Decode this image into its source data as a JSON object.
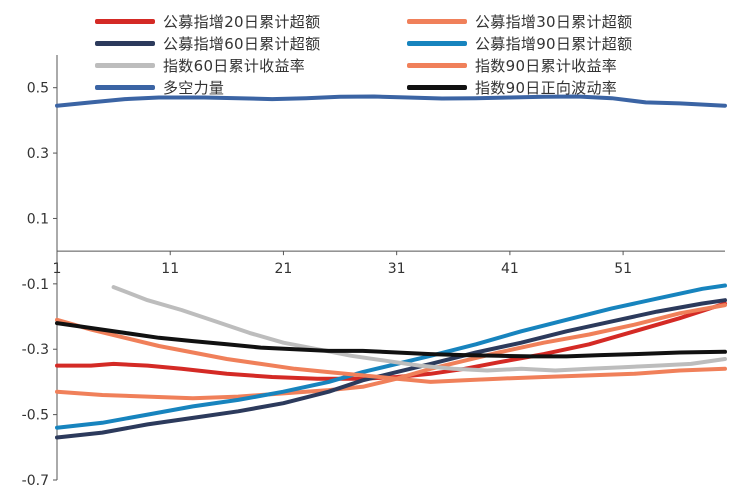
{
  "chart_data": {
    "type": "line",
    "title": "",
    "xlabel": "",
    "ylabel": "",
    "xlim": [
      1,
      60
    ],
    "ylim": [
      -0.7,
      0.6
    ],
    "y_ticks": [
      0.5,
      0.3,
      0.1,
      -0.1,
      -0.3,
      -0.5,
      -0.7
    ],
    "y_tick_labels": [
      "0.5",
      "0.3",
      "0.1",
      "-0.1",
      "-0.3",
      "-0.5",
      "-0.7"
    ],
    "x_ticks": [
      1,
      11,
      21,
      31,
      41,
      51
    ],
    "x_tick_labels": [
      "1",
      "11",
      "21",
      "31",
      "41",
      "51"
    ],
    "grid": false,
    "legend_position": "top",
    "series": [
      {
        "name": "公募指增20日累计超额",
        "color": "#d42a25",
        "points": [
          [
            1,
            -0.35
          ],
          [
            4,
            -0.35
          ],
          [
            6,
            -0.345
          ],
          [
            9,
            -0.35
          ],
          [
            12,
            -0.36
          ],
          [
            16,
            -0.375
          ],
          [
            20,
            -0.385
          ],
          [
            24,
            -0.39
          ],
          [
            28,
            -0.39
          ],
          [
            31,
            -0.385
          ],
          [
            34,
            -0.375
          ],
          [
            37,
            -0.36
          ],
          [
            40,
            -0.34
          ],
          [
            44,
            -0.315
          ],
          [
            48,
            -0.285
          ],
          [
            52,
            -0.245
          ],
          [
            56,
            -0.205
          ],
          [
            60,
            -0.16
          ]
        ]
      },
      {
        "name": "公募指增30日累计超额",
        "color": "#f0805a",
        "points": [
          [
            1,
            -0.43
          ],
          [
            5,
            -0.44
          ],
          [
            9,
            -0.445
          ],
          [
            13,
            -0.45
          ],
          [
            17,
            -0.445
          ],
          [
            21,
            -0.435
          ],
          [
            25,
            -0.425
          ],
          [
            28,
            -0.415
          ],
          [
            31,
            -0.39
          ],
          [
            34,
            -0.36
          ],
          [
            37,
            -0.335
          ],
          [
            40,
            -0.31
          ],
          [
            44,
            -0.28
          ],
          [
            48,
            -0.255
          ],
          [
            52,
            -0.225
          ],
          [
            56,
            -0.19
          ],
          [
            60,
            -0.165
          ]
        ]
      },
      {
        "name": "公募指增60日累计超额",
        "color": "#2c3a5c",
        "points": [
          [
            1,
            -0.57
          ],
          [
            5,
            -0.555
          ],
          [
            9,
            -0.53
          ],
          [
            13,
            -0.51
          ],
          [
            17,
            -0.49
          ],
          [
            21,
            -0.465
          ],
          [
            25,
            -0.43
          ],
          [
            28,
            -0.395
          ],
          [
            31,
            -0.37
          ],
          [
            34,
            -0.345
          ],
          [
            38,
            -0.31
          ],
          [
            42,
            -0.28
          ],
          [
            46,
            -0.245
          ],
          [
            50,
            -0.215
          ],
          [
            54,
            -0.185
          ],
          [
            58,
            -0.16
          ],
          [
            60,
            -0.15
          ]
        ]
      },
      {
        "name": "公募指增90日累计超额",
        "color": "#1784be",
        "points": [
          [
            1,
            -0.54
          ],
          [
            5,
            -0.525
          ],
          [
            9,
            -0.5
          ],
          [
            13,
            -0.475
          ],
          [
            17,
            -0.455
          ],
          [
            21,
            -0.43
          ],
          [
            25,
            -0.4
          ],
          [
            28,
            -0.37
          ],
          [
            31,
            -0.345
          ],
          [
            34,
            -0.32
          ],
          [
            38,
            -0.285
          ],
          [
            42,
            -0.245
          ],
          [
            46,
            -0.21
          ],
          [
            50,
            -0.175
          ],
          [
            54,
            -0.145
          ],
          [
            58,
            -0.115
          ],
          [
            60,
            -0.105
          ]
        ]
      },
      {
        "name": "指数60日累计收益率",
        "color": "#bdbdbd",
        "points": [
          [
            6,
            -0.11
          ],
          [
            9,
            -0.15
          ],
          [
            12,
            -0.18
          ],
          [
            15,
            -0.215
          ],
          [
            18,
            -0.25
          ],
          [
            21,
            -0.28
          ],
          [
            24,
            -0.3
          ],
          [
            27,
            -0.32
          ],
          [
            30,
            -0.335
          ],
          [
            33,
            -0.35
          ],
          [
            36,
            -0.36
          ],
          [
            39,
            -0.365
          ],
          [
            42,
            -0.36
          ],
          [
            45,
            -0.365
          ],
          [
            48,
            -0.36
          ],
          [
            51,
            -0.355
          ],
          [
            54,
            -0.35
          ],
          [
            57,
            -0.345
          ],
          [
            60,
            -0.33
          ]
        ]
      },
      {
        "name": "指数90日累计收益率",
        "color": "#f0805a",
        "points": [
          [
            1,
            -0.21
          ],
          [
            4,
            -0.24
          ],
          [
            7,
            -0.265
          ],
          [
            10,
            -0.29
          ],
          [
            13,
            -0.31
          ],
          [
            16,
            -0.33
          ],
          [
            19,
            -0.345
          ],
          [
            22,
            -0.36
          ],
          [
            25,
            -0.37
          ],
          [
            28,
            -0.38
          ],
          [
            31,
            -0.39
          ],
          [
            34,
            -0.4
          ],
          [
            37,
            -0.395
          ],
          [
            40,
            -0.39
          ],
          [
            44,
            -0.385
          ],
          [
            48,
            -0.38
          ],
          [
            52,
            -0.375
          ],
          [
            56,
            -0.365
          ],
          [
            60,
            -0.36
          ]
        ]
      },
      {
        "name": "多空力量",
        "color": "#3b64a4",
        "points": [
          [
            1,
            0.445
          ],
          [
            4,
            0.455
          ],
          [
            7,
            0.465
          ],
          [
            10,
            0.47
          ],
          [
            14,
            0.47
          ],
          [
            17,
            0.468
          ],
          [
            20,
            0.465
          ],
          [
            23,
            0.468
          ],
          [
            26,
            0.472
          ],
          [
            29,
            0.473
          ],
          [
            32,
            0.47
          ],
          [
            35,
            0.467
          ],
          [
            38,
            0.468
          ],
          [
            41,
            0.47
          ],
          [
            44,
            0.472
          ],
          [
            47,
            0.473
          ],
          [
            50,
            0.468
          ],
          [
            53,
            0.455
          ],
          [
            56,
            0.452
          ],
          [
            60,
            0.445
          ]
        ]
      },
      {
        "name": "指数90日正向波动率",
        "color": "#111111",
        "points": [
          [
            1,
            -0.22
          ],
          [
            4,
            -0.235
          ],
          [
            7,
            -0.25
          ],
          [
            10,
            -0.265
          ],
          [
            13,
            -0.275
          ],
          [
            16,
            -0.285
          ],
          [
            19,
            -0.295
          ],
          [
            22,
            -0.3
          ],
          [
            25,
            -0.305
          ],
          [
            28,
            -0.305
          ],
          [
            31,
            -0.31
          ],
          [
            34,
            -0.315
          ],
          [
            37,
            -0.318
          ],
          [
            40,
            -0.32
          ],
          [
            43,
            -0.322
          ],
          [
            46,
            -0.322
          ],
          [
            49,
            -0.318
          ],
          [
            52,
            -0.315
          ],
          [
            56,
            -0.31
          ],
          [
            60,
            -0.308
          ]
        ]
      }
    ]
  }
}
